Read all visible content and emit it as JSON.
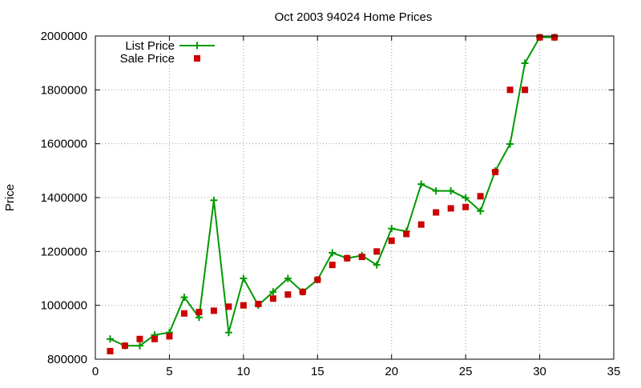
{
  "chart_data": {
    "type": "line",
    "title": "Oct 2003 94024 Home Prices",
    "xlabel": "",
    "ylabel": "Price",
    "xlim": [
      0,
      35
    ],
    "ylim": [
      800000,
      2000000
    ],
    "x_ticks": [
      0,
      5,
      10,
      15,
      20,
      25,
      30,
      35
    ],
    "y_ticks": [
      800000,
      1000000,
      1200000,
      1400000,
      1600000,
      1800000,
      2000000
    ],
    "grid": true,
    "legend_position": "top-left",
    "series": [
      {
        "name": "List Price",
        "style": "line-plus",
        "color": "#009900",
        "x": [
          1,
          2,
          3,
          4,
          5,
          6,
          7,
          8,
          9,
          10,
          11,
          12,
          13,
          14,
          15,
          16,
          17,
          18,
          19,
          20,
          21,
          22,
          23,
          24,
          25,
          26,
          27,
          28,
          29,
          30,
          31
        ],
        "values": [
          875000,
          850000,
          850000,
          890000,
          899000,
          1030000,
          955000,
          1390000,
          899000,
          1100000,
          1000000,
          1050000,
          1100000,
          1050000,
          1095000,
          1195000,
          1175000,
          1185000,
          1150000,
          1285000,
          1275000,
          1450000,
          1425000,
          1425000,
          1399000,
          1350000,
          1499000,
          1599000,
          1899000,
          1995000,
          1995000
        ]
      },
      {
        "name": "Sale Price",
        "style": "square-points",
        "color": "#cc0000",
        "x": [
          1,
          2,
          3,
          4,
          5,
          6,
          7,
          8,
          9,
          10,
          11,
          12,
          13,
          14,
          15,
          16,
          17,
          18,
          19,
          20,
          21,
          22,
          23,
          24,
          25,
          26,
          27,
          28,
          29,
          30,
          31
        ],
        "values": [
          830000,
          850000,
          875000,
          875000,
          885000,
          970000,
          975000,
          980000,
          995000,
          1000000,
          1005000,
          1025000,
          1040000,
          1050000,
          1095000,
          1150000,
          1175000,
          1180000,
          1200000,
          1240000,
          1265000,
          1300000,
          1345000,
          1360000,
          1365000,
          1405000,
          1495000,
          1800000,
          1800000,
          1995000,
          1995000
        ]
      }
    ]
  }
}
